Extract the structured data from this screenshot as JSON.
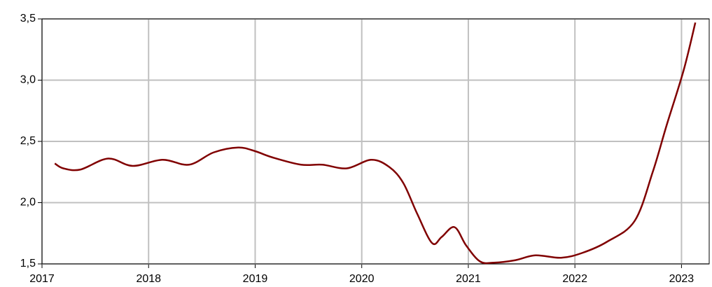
{
  "chart_data": {
    "type": "line",
    "x": [
      2017.12,
      2017.2,
      2017.36,
      2017.62,
      2017.85,
      2018.13,
      2018.38,
      2018.61,
      2018.84,
      2019.0,
      2019.16,
      2019.43,
      2019.63,
      2019.86,
      2020.09,
      2020.26,
      2020.39,
      2020.52,
      2020.66,
      2020.75,
      2020.87,
      2020.98,
      2021.11,
      2021.24,
      2021.44,
      2021.63,
      2021.87,
      2022.07,
      2022.3,
      2022.56,
      2022.73,
      2022.86,
      2023.02,
      2023.13
    ],
    "series": [
      {
        "color": "#800000",
        "values": [
          2.32,
          2.28,
          2.27,
          2.36,
          2.3,
          2.35,
          2.31,
          2.41,
          2.45,
          2.42,
          2.37,
          2.31,
          2.31,
          2.28,
          2.35,
          2.29,
          2.16,
          1.91,
          1.67,
          1.72,
          1.8,
          1.65,
          1.52,
          1.51,
          1.53,
          1.57,
          1.55,
          1.59,
          1.68,
          1.85,
          2.25,
          2.63,
          3.08,
          3.47
        ]
      }
    ],
    "xlim": [
      2017,
      2023.26
    ],
    "xticks": [
      2017,
      2018,
      2019,
      2020,
      2021,
      2022,
      2023
    ],
    "ylim": [
      1.5,
      3.5
    ],
    "yticks": [
      {
        "value": 1.5,
        "label": "1,5"
      },
      {
        "value": 2.0,
        "label": "2,0"
      },
      {
        "value": 2.5,
        "label": "2,5"
      },
      {
        "value": 3.0,
        "label": "3,0"
      },
      {
        "value": 3.5,
        "label": "3,5"
      }
    ],
    "grid": true
  }
}
